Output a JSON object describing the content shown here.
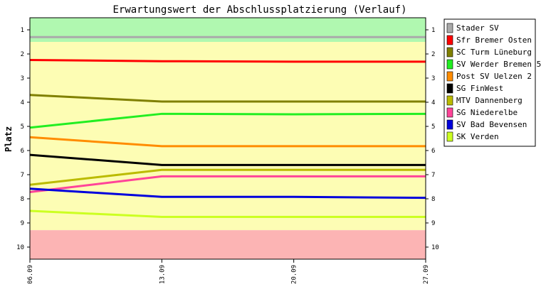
{
  "chart_data": {
    "type": "line",
    "title": "Erwartungswert der Abschlussplatzierung (Verlauf)",
    "ylabel": "Platz",
    "xlabel": "",
    "x": [
      "06.09",
      "13.09",
      "20.09",
      "27.09"
    ],
    "ylim": [
      0.5,
      10.5
    ],
    "y_inverted": true,
    "y_ticks": [
      1,
      2,
      3,
      4,
      5,
      6,
      7,
      8,
      9,
      10
    ],
    "bands": [
      {
        "from": 0.5,
        "to": 1.5,
        "color": "#b0f8b0"
      },
      {
        "from": 1.5,
        "to": 9.3,
        "color": "#fdfdb4"
      },
      {
        "from": 9.3,
        "to": 10.5,
        "color": "#fcb4b4"
      }
    ],
    "legend_position": "right",
    "series": [
      {
        "name": "Stader SV",
        "color": "#aaaaaa",
        "values": [
          1.3,
          1.3,
          1.3,
          1.3
        ]
      },
      {
        "name": "Sfr Bremer Osten",
        "color": "#ff0000",
        "values": [
          2.25,
          2.3,
          2.32,
          2.32
        ]
      },
      {
        "name": "SC Turm Lüneburg",
        "color": "#808000",
        "values": [
          3.7,
          3.97,
          3.97,
          3.97
        ]
      },
      {
        "name": "SV Werder Bremen 5",
        "color": "#22ee22",
        "values": [
          5.05,
          4.48,
          4.5,
          4.48
        ]
      },
      {
        "name": "Post SV Uelzen 2",
        "color": "#ff8c00",
        "values": [
          5.45,
          5.82,
          5.82,
          5.82
        ]
      },
      {
        "name": "SG FinWest",
        "color": "#000000",
        "values": [
          6.18,
          6.6,
          6.6,
          6.6
        ]
      },
      {
        "name": "MTV Dannenberg",
        "color": "#bbbb00",
        "values": [
          7.42,
          6.8,
          6.8,
          6.8
        ]
      },
      {
        "name": "SG Niederelbe",
        "color": "#ff4499",
        "values": [
          7.72,
          7.07,
          7.07,
          7.07
        ]
      },
      {
        "name": "SV Bad Bevensen",
        "color": "#0000dd",
        "values": [
          7.58,
          7.92,
          7.92,
          7.96
        ]
      },
      {
        "name": "SK Verden",
        "color": "#ccff22",
        "values": [
          8.5,
          8.75,
          8.75,
          8.75
        ]
      }
    ]
  }
}
